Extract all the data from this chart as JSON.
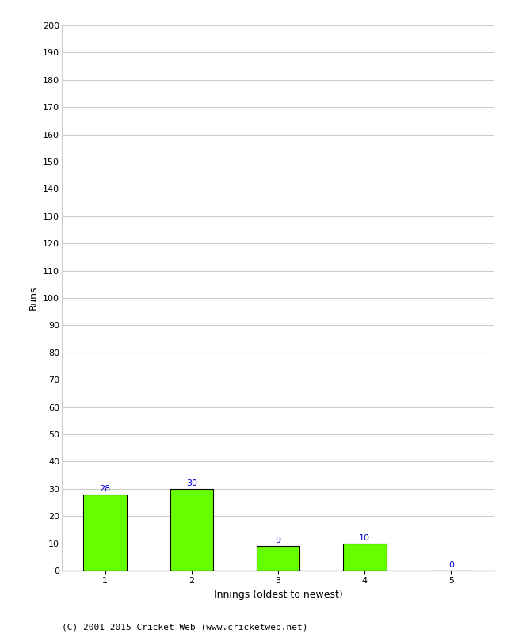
{
  "categories": [
    1,
    2,
    3,
    4,
    5
  ],
  "values": [
    28,
    30,
    9,
    10,
    0
  ],
  "bar_color": "#66ff00",
  "bar_edge_color": "#000000",
  "xlabel": "Innings (oldest to newest)",
  "ylabel": "Runs",
  "ylim": [
    0,
    200
  ],
  "yticks": [
    0,
    10,
    20,
    30,
    40,
    50,
    60,
    70,
    80,
    90,
    100,
    110,
    120,
    130,
    140,
    150,
    160,
    170,
    180,
    190,
    200
  ],
  "label_color": "#0000cc",
  "label_fontsize": 8,
  "axis_fontsize": 9,
  "tick_fontsize": 8,
  "footer": "(C) 2001-2015 Cricket Web (www.cricketweb.net)",
  "footer_fontsize": 8,
  "background_color": "#ffffff",
  "grid_color": "#cccccc",
  "bar_width": 0.5
}
